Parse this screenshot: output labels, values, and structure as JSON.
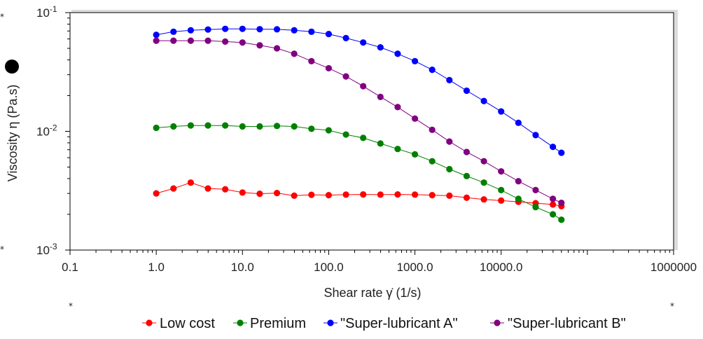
{
  "chart_data": {
    "type": "line",
    "xscale": "log",
    "yscale": "log",
    "xlim": [
      0.1,
      1000000
    ],
    "ylim": [
      0.001,
      0.1
    ],
    "x_ticks": [
      {
        "value": 0.1,
        "label": "0.1"
      },
      {
        "value": 1,
        "label": "1.0"
      },
      {
        "value": 10,
        "label": "10.0"
      },
      {
        "value": 100,
        "label": "100.0"
      },
      {
        "value": 1000,
        "label": "1000.0"
      },
      {
        "value": 10000,
        "label": "10000.0"
      },
      {
        "value": 1000000,
        "label": "1000000"
      }
    ],
    "y_ticks": [
      {
        "value": 0.1,
        "mantissa": "10",
        "exponent": "-1"
      },
      {
        "value": 0.01,
        "mantissa": "10",
        "exponent": "-2"
      },
      {
        "value": 0.001,
        "mantissa": "10",
        "exponent": "-3"
      }
    ],
    "xlabel": "Shear rate  γ̇  (1/s)",
    "ylabel": "Viscosity  η  (Pa.s)",
    "legend_position": "bottom",
    "x": [
      1,
      1.585,
      2.512,
      3.981,
      6.31,
      10,
      15.85,
      25.12,
      39.81,
      63.1,
      100,
      158.5,
      251.2,
      398.1,
      631,
      1000,
      1585,
      2512,
      3981,
      6310,
      10000,
      15850,
      25120,
      39810,
      50000
    ],
    "series": [
      {
        "name": "Low cost",
        "color": "#ff0000",
        "values": [
          0.003,
          0.0033,
          0.0037,
          0.0033,
          0.00325,
          0.00305,
          0.00298,
          0.00302,
          0.00287,
          0.00292,
          0.0029,
          0.00293,
          0.00294,
          0.00293,
          0.00294,
          0.00293,
          0.0029,
          0.00287,
          0.00276,
          0.00267,
          0.00261,
          0.00255,
          0.00248,
          0.00242,
          0.00234
        ]
      },
      {
        "name": "Premium",
        "color": "#008000",
        "values": [
          0.0107,
          0.011,
          0.0112,
          0.0112,
          0.0112,
          0.011,
          0.011,
          0.0111,
          0.011,
          0.0105,
          0.0102,
          0.0094,
          0.0088,
          0.0079,
          0.0071,
          0.0064,
          0.0056,
          0.0048,
          0.0042,
          0.0037,
          0.0032,
          0.0027,
          0.0023,
          0.002,
          0.0018
        ]
      },
      {
        "name": "\"Super-lubricant A\"",
        "color": "#0000ff",
        "values": [
          0.065,
          0.069,
          0.071,
          0.072,
          0.073,
          0.073,
          0.0725,
          0.0723,
          0.071,
          0.069,
          0.066,
          0.061,
          0.056,
          0.051,
          0.045,
          0.039,
          0.033,
          0.027,
          0.022,
          0.018,
          0.0147,
          0.0118,
          0.0093,
          0.0074,
          0.0066
        ]
      },
      {
        "name": "\"Super-lubricant B\"",
        "color": "#800080",
        "values": [
          0.058,
          0.058,
          0.058,
          0.058,
          0.057,
          0.056,
          0.053,
          0.05,
          0.045,
          0.039,
          0.034,
          0.029,
          0.024,
          0.0195,
          0.016,
          0.0128,
          0.0103,
          0.0082,
          0.0067,
          0.0056,
          0.0046,
          0.0038,
          0.0032,
          0.0027,
          0.0025
        ]
      }
    ]
  }
}
